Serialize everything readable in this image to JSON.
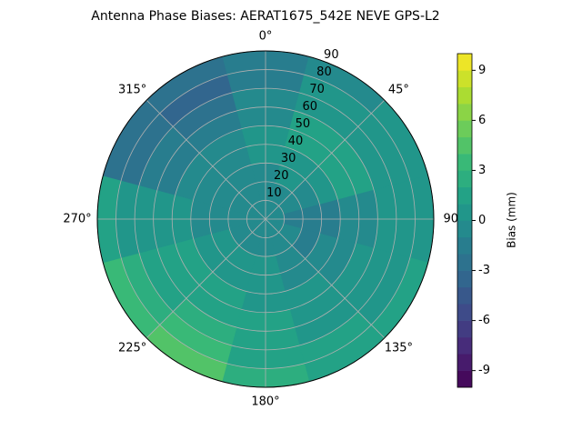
{
  "chart_data": {
    "type": "polar_contour",
    "title": "Antenna Phase Biases: AERAT1675_542E  NEVE GPS-L2",
    "colorbar_label": "Bias (mm)",
    "colormap": "viridis",
    "grid": true,
    "clim": [
      -10,
      10
    ],
    "level_step": 1,
    "cticks": [
      -9,
      -6,
      -3,
      0,
      3,
      6,
      9
    ],
    "rlim": [
      0,
      90
    ],
    "rticks": [
      10,
      20,
      30,
      40,
      50,
      60,
      70,
      80,
      90
    ],
    "thetaticks": [
      {
        "value": 0,
        "label": "0°"
      },
      {
        "value": 45,
        "label": "45°"
      },
      {
        "value": 90,
        "label": "90°"
      },
      {
        "value": 135,
        "label": "135°"
      },
      {
        "value": 180,
        "label": "180°"
      },
      {
        "value": 225,
        "label": "225°"
      },
      {
        "value": 270,
        "label": "270°"
      },
      {
        "value": 315,
        "label": "315°"
      }
    ],
    "azimuth": [
      0,
      30,
      60,
      90,
      120,
      150,
      180,
      210,
      240,
      270,
      300,
      330
    ],
    "zenith": [
      5,
      15,
      25,
      35,
      45,
      55,
      65,
      75,
      85
    ],
    "values": [
      [
        -1,
        -1,
        -1,
        0,
        0,
        -1,
        -1,
        -2,
        -2
      ],
      [
        -1,
        -1,
        0,
        0,
        1,
        1,
        0,
        0,
        -1
      ],
      [
        -1,
        -1,
        -1,
        0,
        1,
        1,
        0,
        0,
        0
      ],
      [
        -1,
        -2,
        -2,
        -2,
        -1,
        -1,
        0,
        0,
        0
      ],
      [
        -1,
        -1,
        -2,
        -1,
        -1,
        0,
        0,
        0,
        1
      ],
      [
        -1,
        -1,
        -1,
        -1,
        0,
        0,
        0,
        1,
        1
      ],
      [
        -1,
        -1,
        0,
        0,
        0,
        1,
        1,
        1,
        2
      ],
      [
        -1,
        -1,
        0,
        0,
        1,
        1,
        2,
        3,
        4
      ],
      [
        -1,
        -1,
        0,
        0,
        1,
        1,
        1,
        2,
        3
      ],
      [
        -1,
        -1,
        -1,
        -1,
        0,
        0,
        0,
        0,
        1
      ],
      [
        -1,
        -1,
        -1,
        -1,
        -1,
        -2,
        -2,
        -3,
        -3
      ],
      [
        -1,
        -1,
        -1,
        -1,
        -1,
        -2,
        -3,
        -4,
        -3
      ]
    ]
  }
}
